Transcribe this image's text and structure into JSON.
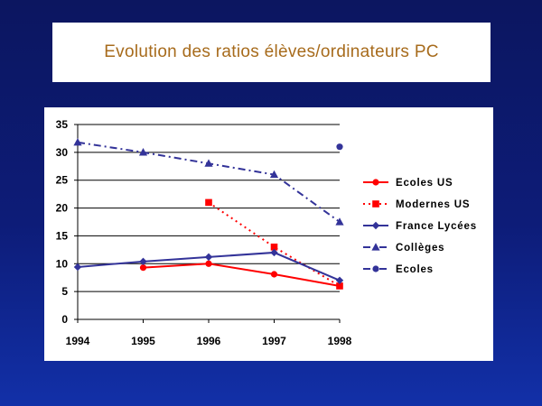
{
  "title": "Evolution des ratios élèves/ordinateurs PC",
  "chart_data": {
    "type": "line",
    "x": [
      1994,
      1995,
      1996,
      1997,
      1998
    ],
    "ylim": [
      0,
      35
    ],
    "yticks": [
      0,
      5,
      10,
      15,
      20,
      25,
      30,
      35
    ],
    "xticks": [
      "1994",
      "1995",
      "1996",
      "1997",
      "1998"
    ],
    "grid": "horizontal",
    "legend_position": "right",
    "series": [
      {
        "name": "Ecoles US",
        "values": [
          null,
          9.3,
          10,
          8.1,
          6
        ],
        "color": "#ff0000",
        "dash": "solid",
        "marker": "circle"
      },
      {
        "name": "Modernes US",
        "values": [
          null,
          null,
          21,
          13,
          6
        ],
        "color": "#ff0000",
        "dash": "dotted",
        "marker": "square"
      },
      {
        "name": "France Lycées",
        "values": [
          9.4,
          10.4,
          11.2,
          12,
          7
        ],
        "color": "#333399",
        "dash": "solid",
        "marker": "diamond"
      },
      {
        "name": "Collèges",
        "values": [
          31.8,
          30,
          28,
          26,
          17.5
        ],
        "color": "#333399",
        "dash": "dashdot",
        "marker": "triangle"
      },
      {
        "name": "Ecoles",
        "values": [
          null,
          null,
          null,
          null,
          31
        ],
        "color": "#333399",
        "dash": "dashdot",
        "marker": "circle"
      }
    ]
  }
}
